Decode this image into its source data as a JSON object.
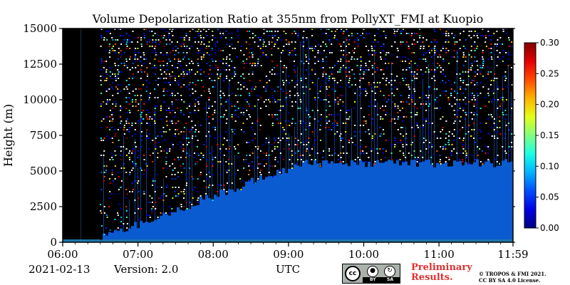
{
  "chart_data": {
    "type": "heatmap",
    "title": "Volume Depolarization Ratio at 355nm from PollyXT_FMI at Kuopio",
    "ylabel": "Height (m)",
    "xlabel": "UTC",
    "x_ticks": [
      "06:00",
      "07:00",
      "08:00",
      "09:00",
      "10:00",
      "11:00",
      "11:59"
    ],
    "y_ticks": [
      0,
      2500,
      5000,
      7500,
      10000,
      12500,
      15000
    ],
    "ylim": [
      0,
      15000
    ],
    "xlim": [
      "06:00",
      "11:59"
    ],
    "colorbar": {
      "ticks": [
        "0.00",
        "0.05",
        "0.10",
        "0.15",
        "0.20",
        "0.25",
        "0.30"
      ],
      "range": [
        0,
        0.3
      ],
      "colormap": "jet"
    },
    "background_color": "#000000",
    "low_value_color": "#0a5ad0"
  },
  "footer": {
    "date": "2021-02-13",
    "version": "Version: 2.0",
    "xlabel": "UTC",
    "preliminary": "Preliminary Results.",
    "copyright_line1": "© TROPOS & FMI 2021.",
    "copyright_line2": "CC BY SA 4.0 License.",
    "license_icons": [
      "cc-icon",
      "by-icon",
      "sa-icon"
    ],
    "license_strip": [
      "BY",
      "SA"
    ]
  }
}
